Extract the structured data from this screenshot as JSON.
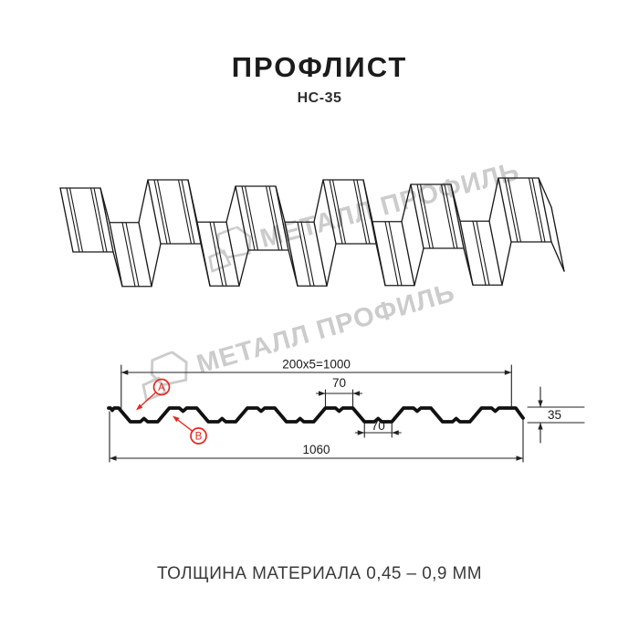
{
  "header": {
    "title": "ПРОФЛИСТ",
    "subtitle": "НС-35"
  },
  "watermark": {
    "text": "МЕТАЛЛ ПРОФИЛЬ",
    "color": "#cccccc",
    "logo_icon": "metal-profile-logo"
  },
  "section": {
    "dimensions": {
      "coverage": "200x5=1000",
      "crest_width": "70",
      "valley_width": "70",
      "overall_width": "1060",
      "height": "35"
    },
    "callouts": {
      "a": "A",
      "b": "B"
    },
    "colors": {
      "annotation": "#e6281e",
      "dim_line": "#222222",
      "profile_line": "#111111",
      "drawing_line": "#1a1a1a"
    }
  },
  "footer": {
    "note": "ТОЛЩИНА МАТЕРИАЛА 0,45 – 0,9 ММ"
  }
}
